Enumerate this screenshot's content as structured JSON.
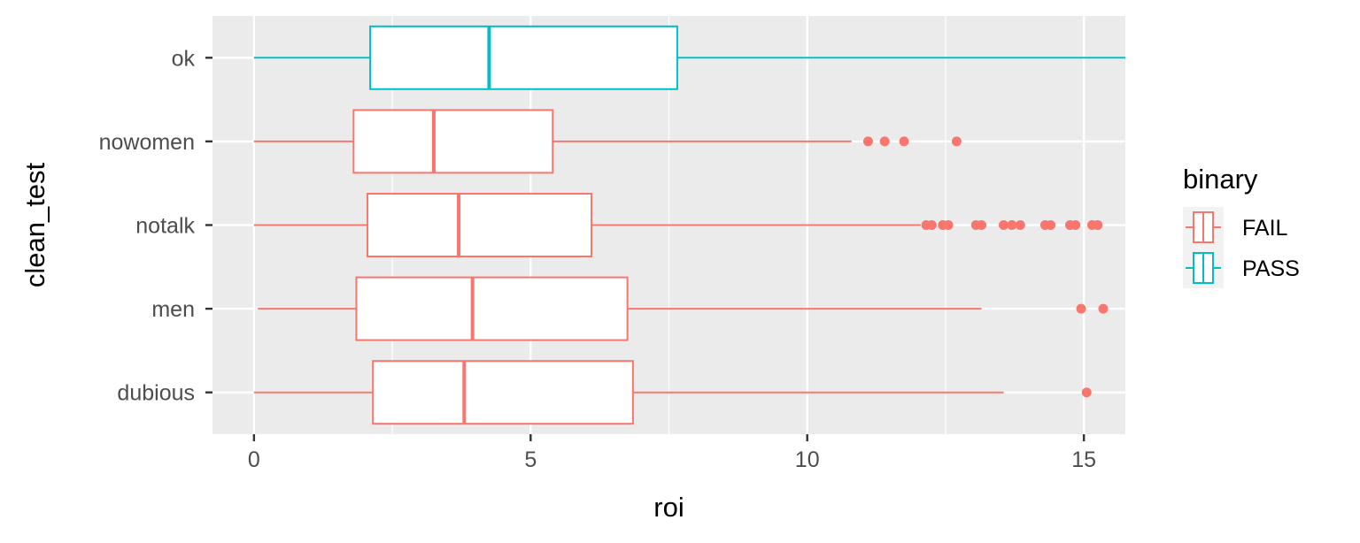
{
  "chart_data": {
    "type": "boxplot",
    "orientation": "horizontal",
    "xlabel": "roi",
    "ylabel": "clean_test",
    "xlim": [
      -0.75,
      15.75
    ],
    "x_ticks": [
      0,
      5,
      10,
      15
    ],
    "categories": [
      "dubious",
      "men",
      "notalk",
      "nowomen",
      "ok"
    ],
    "grid": true,
    "legend": {
      "title": "binary",
      "position": "right",
      "entries": [
        {
          "label": "FAIL",
          "color": "#F8766D"
        },
        {
          "label": "PASS",
          "color": "#00BFC4"
        }
      ]
    },
    "boxes": [
      {
        "category": "dubious",
        "group": "FAIL",
        "whisker_low": 0.0,
        "q1": 2.15,
        "median": 3.8,
        "q3": 6.85,
        "whisker_high": 13.55,
        "outliers": [
          15.05
        ]
      },
      {
        "category": "men",
        "group": "FAIL",
        "whisker_low": 0.07,
        "q1": 1.85,
        "median": 3.95,
        "q3": 6.75,
        "whisker_high": 13.15,
        "outliers": [
          14.95,
          15.35
        ]
      },
      {
        "category": "notalk",
        "group": "FAIL",
        "whisker_low": 0.0,
        "q1": 2.05,
        "median": 3.7,
        "q3": 6.1,
        "whisker_high": 12.05,
        "outliers": [
          12.15,
          12.25,
          12.45,
          12.55,
          13.05,
          13.15,
          13.55,
          13.7,
          13.85,
          14.3,
          14.4,
          14.75,
          14.85,
          15.15,
          15.25
        ]
      },
      {
        "category": "nowomen",
        "group": "FAIL",
        "whisker_low": 0.0,
        "q1": 1.8,
        "median": 3.25,
        "q3": 5.4,
        "whisker_high": 10.8,
        "outliers": [
          11.1,
          11.4,
          11.75,
          12.7
        ]
      },
      {
        "category": "ok",
        "group": "PASS",
        "whisker_low": 0.0,
        "q1": 2.1,
        "median": 4.25,
        "q3": 7.65,
        "whisker_high": 15.75,
        "outliers": []
      }
    ]
  }
}
